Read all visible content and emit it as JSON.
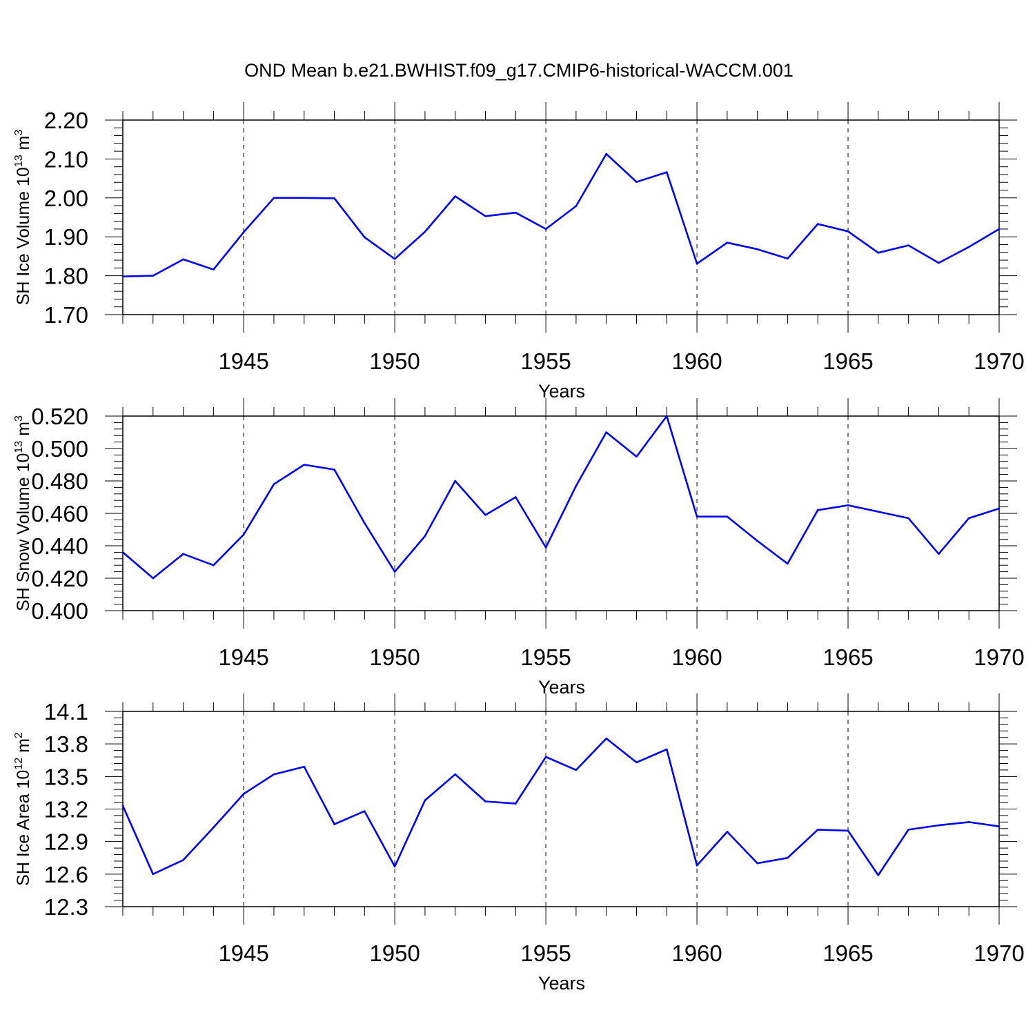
{
  "figure": {
    "title": "OND Mean b.e21.BWHIST.f09_g17.CMIP6-historical-WACCM.001"
  },
  "chart_data": [
    {
      "type": "line",
      "xlabel": "Years",
      "ylabel": {
        "main": "SH Ice Volume 10",
        "exp": "13",
        "unit": " m",
        "unit_exp": "3"
      },
      "xlim": [
        1941,
        1970
      ],
      "ylim": [
        1.7,
        2.2
      ],
      "x_ticks": [
        "1945",
        "1950",
        "1955",
        "1960",
        "1965",
        "1970"
      ],
      "y_ticks": [
        "1.70",
        "1.80",
        "1.90",
        "2.00",
        "2.10",
        "2.20"
      ],
      "grid": "vertical dashed at major x ticks",
      "color": "#0000ff",
      "x": [
        1941,
        1942,
        1943,
        1944,
        1945,
        1946,
        1947,
        1948,
        1949,
        1950,
        1951,
        1952,
        1953,
        1954,
        1955,
        1956,
        1957,
        1958,
        1959,
        1960,
        1961,
        1962,
        1963,
        1964,
        1965,
        1966,
        1967,
        1968,
        1969,
        1970
      ],
      "values": [
        1.798,
        1.8,
        1.842,
        1.816,
        1.912,
        2.0,
        2.0,
        1.999,
        1.899,
        1.843,
        1.913,
        2.004,
        1.953,
        1.962,
        1.92,
        1.979,
        2.113,
        2.041,
        2.066,
        1.831,
        1.885,
        1.868,
        1.844,
        1.933,
        1.914,
        1.859,
        1.878,
        1.833,
        1.874,
        1.92
      ]
    },
    {
      "type": "line",
      "xlabel": "Years",
      "ylabel": {
        "main": "SH Snow Volume 10",
        "exp": "13",
        "unit": " m",
        "unit_exp": "3"
      },
      "xlim": [
        1941,
        1970
      ],
      "ylim": [
        0.4,
        0.52
      ],
      "x_ticks": [
        "1945",
        "1950",
        "1955",
        "1960",
        "1965",
        "1970"
      ],
      "y_ticks": [
        "0.400",
        "0.420",
        "0.440",
        "0.460",
        "0.480",
        "0.500",
        "0.520"
      ],
      "grid": "vertical dashed at major x ticks",
      "color": "#0000ff",
      "x": [
        1941,
        1942,
        1943,
        1944,
        1945,
        1946,
        1947,
        1948,
        1949,
        1950,
        1951,
        1952,
        1953,
        1954,
        1955,
        1956,
        1957,
        1958,
        1959,
        1960,
        1961,
        1962,
        1963,
        1964,
        1965,
        1966,
        1967,
        1968,
        1969,
        1970
      ],
      "values": [
        0.436,
        0.42,
        0.435,
        0.428,
        0.447,
        0.478,
        0.49,
        0.487,
        0.454,
        0.424,
        0.446,
        0.48,
        0.459,
        0.47,
        0.439,
        0.477,
        0.51,
        0.495,
        0.52,
        0.458,
        0.458,
        0.443,
        0.429,
        0.462,
        0.465,
        0.461,
        0.457,
        0.435,
        0.457,
        0.463
      ]
    },
    {
      "type": "line",
      "xlabel": "Years",
      "ylabel": {
        "main": "SH Ice Area 10",
        "exp": "12",
        "unit": " m",
        "unit_exp": "2"
      },
      "xlim": [
        1941,
        1970
      ],
      "ylim": [
        12.3,
        14.1
      ],
      "x_ticks": [
        "1945",
        "1950",
        "1955",
        "1960",
        "1965",
        "1970"
      ],
      "y_ticks": [
        "12.3",
        "12.6",
        "12.9",
        "13.2",
        "13.5",
        "13.8",
        "14.1"
      ],
      "grid": "vertical dashed at major x ticks",
      "color": "#0000ff",
      "x": [
        1941,
        1942,
        1943,
        1944,
        1945,
        1946,
        1947,
        1948,
        1949,
        1950,
        1951,
        1952,
        1953,
        1954,
        1955,
        1956,
        1957,
        1958,
        1959,
        1960,
        1961,
        1962,
        1963,
        1964,
        1965,
        1966,
        1967,
        1968,
        1969,
        1970
      ],
      "values": [
        13.23,
        12.6,
        12.73,
        13.03,
        13.34,
        13.52,
        13.59,
        13.06,
        13.18,
        12.67,
        13.28,
        13.52,
        13.27,
        13.25,
        13.68,
        13.56,
        13.85,
        13.63,
        13.75,
        12.68,
        12.99,
        12.7,
        12.75,
        13.01,
        13.0,
        12.59,
        13.01,
        13.05,
        13.08,
        13.04
      ]
    }
  ]
}
